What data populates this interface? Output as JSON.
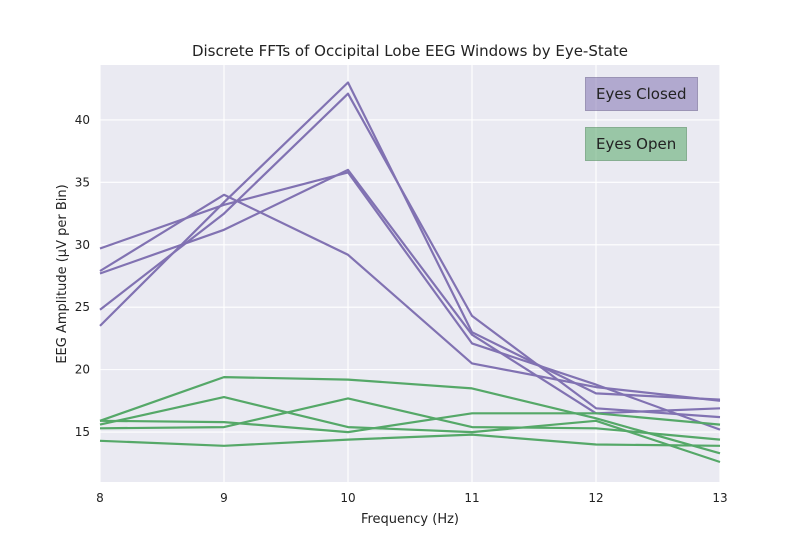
{
  "chart_data": {
    "type": "line",
    "title": "Discrete FFTs of Occipital Lobe EEG Windows by Eye-State",
    "xlabel": "Frequency (Hz)",
    "ylabel": "EEG Amplitude (µV per Bin)",
    "x": [
      8,
      9,
      10,
      11,
      12,
      13
    ],
    "xlim": [
      8,
      13
    ],
    "ylim": [
      11,
      44.4
    ],
    "xticks": [
      "8",
      "9",
      "10",
      "11",
      "12",
      "13"
    ],
    "yticks": [
      "15",
      "20",
      "25",
      "30",
      "35",
      "40"
    ],
    "ytick_values": [
      15,
      20,
      25,
      30,
      35,
      40
    ],
    "grid": true,
    "legend_position": "top-right",
    "legend": [
      {
        "label": "Eyes Closed",
        "color": "#8172b2"
      },
      {
        "label": "Eyes Open",
        "color": "#55a868"
      }
    ],
    "series": [
      {
        "group": "Eyes Closed",
        "color": "#8172b2",
        "values": [
          29.7,
          33.2,
          35.8,
          22.1,
          18.8,
          15.2
        ]
      },
      {
        "group": "Eyes Closed",
        "color": "#8172b2",
        "values": [
          27.7,
          31.2,
          36.0,
          22.8,
          16.5,
          16.9
        ]
      },
      {
        "group": "Eyes Closed",
        "color": "#8172b2",
        "values": [
          27.9,
          34.0,
          29.2,
          20.5,
          18.6,
          17.5
        ]
      },
      {
        "group": "Eyes Closed",
        "color": "#8172b2",
        "values": [
          24.8,
          32.5,
          42.1,
          24.3,
          16.9,
          16.2
        ]
      },
      {
        "group": "Eyes Closed",
        "color": "#8172b2",
        "values": [
          23.5,
          33.4,
          43.0,
          23.0,
          18.1,
          17.6
        ]
      },
      {
        "group": "Eyes Open",
        "color": "#55a868",
        "values": [
          15.9,
          19.4,
          19.2,
          18.5,
          16.1,
          13.3
        ]
      },
      {
        "group": "Eyes Open",
        "color": "#55a868",
        "values": [
          15.6,
          17.8,
          15.4,
          15.0,
          15.9,
          12.6
        ]
      },
      {
        "group": "Eyes Open",
        "color": "#55a868",
        "values": [
          15.3,
          15.4,
          17.7,
          15.4,
          15.3,
          14.4
        ]
      },
      {
        "group": "Eyes Open",
        "color": "#55a868",
        "values": [
          15.9,
          15.8,
          15.0,
          16.5,
          16.5,
          15.6
        ]
      },
      {
        "group": "Eyes Open",
        "color": "#55a868",
        "values": [
          14.3,
          13.9,
          14.4,
          14.8,
          14.0,
          13.9
        ]
      }
    ]
  }
}
